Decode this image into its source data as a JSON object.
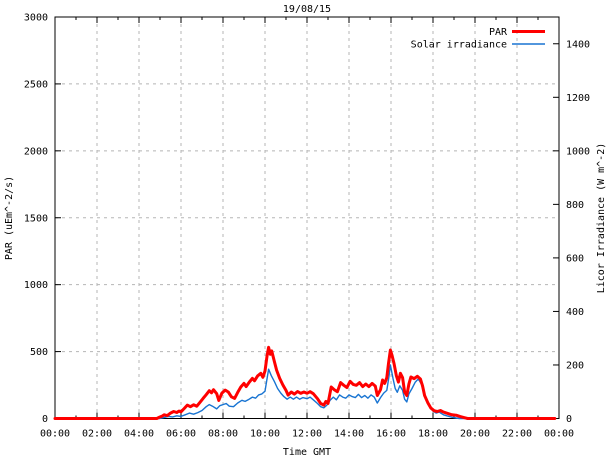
{
  "chart": {
    "title": "19/08/15",
    "x_axis": {
      "label": "Time GMT"
    },
    "y_left": {
      "label": "PAR (uEm^-2/s)"
    },
    "y_right": {
      "label": "Licor Irradiance (W m^-2)"
    },
    "legend": [
      {
        "label": "PAR",
        "color": "#ff0000"
      },
      {
        "label": "Solar irradiance",
        "color": "#1874d2"
      }
    ],
    "grid_color": "#b5b5b5",
    "border_color": "#000000",
    "background_color": "#ffffff"
  },
  "chart_data": {
    "type": "line",
    "title": "19/08/15",
    "xlabel": "Time GMT",
    "ylabel_left": "PAR (uEm^-2/s)",
    "ylabel_right": "Licor Irradiance (W m^-2)",
    "x_unit": "hours",
    "xlim": [
      0,
      24
    ],
    "ylim_left": [
      0,
      3000
    ],
    "ylim_right": [
      0,
      1500
    ],
    "x_tick_hours": [
      0,
      2,
      4,
      6,
      8,
      10,
      12,
      14,
      16,
      18,
      20,
      22,
      24
    ],
    "x_tick_labels": [
      "00:00",
      "02:00",
      "04:00",
      "06:00",
      "08:00",
      "10:00",
      "12:00",
      "14:00",
      "16:00",
      "18:00",
      "20:00",
      "22:00",
      "00:00"
    ],
    "x_minor_tick_hours": [
      1,
      3,
      5,
      7,
      9,
      11,
      13,
      15,
      17,
      19,
      21,
      23
    ],
    "y_left_ticks": [
      0,
      500,
      1000,
      1500,
      2000,
      2500,
      3000
    ],
    "y_right_ticks": [
      0,
      200,
      400,
      600,
      800,
      1000,
      1200,
      1400
    ],
    "grid": true,
    "legend_position": "top-right",
    "series": [
      {
        "name": "Solar irradiance",
        "axis": "right",
        "color": "#1874d2",
        "width": 1.4,
        "points": [
          [
            0,
            0
          ],
          [
            5.0,
            0
          ],
          [
            5.2,
            4
          ],
          [
            5.4,
            8
          ],
          [
            5.6,
            6
          ],
          [
            5.8,
            10
          ],
          [
            6.0,
            8
          ],
          [
            6.2,
            14
          ],
          [
            6.4,
            20
          ],
          [
            6.6,
            16
          ],
          [
            6.8,
            22
          ],
          [
            7.0,
            30
          ],
          [
            7.2,
            44
          ],
          [
            7.35,
            52
          ],
          [
            7.5,
            46
          ],
          [
            7.7,
            36
          ],
          [
            7.85,
            48
          ],
          [
            8.0,
            52
          ],
          [
            8.15,
            56
          ],
          [
            8.3,
            46
          ],
          [
            8.5,
            44
          ],
          [
            8.7,
            58
          ],
          [
            8.9,
            68
          ],
          [
            9.05,
            64
          ],
          [
            9.2,
            70
          ],
          [
            9.4,
            80
          ],
          [
            9.55,
            76
          ],
          [
            9.7,
            88
          ],
          [
            9.85,
            92
          ],
          [
            10.0,
            102
          ],
          [
            10.1,
            150
          ],
          [
            10.17,
            184
          ],
          [
            10.3,
            160
          ],
          [
            10.45,
            138
          ],
          [
            10.6,
            112
          ],
          [
            10.75,
            95
          ],
          [
            10.9,
            82
          ],
          [
            11.05,
            72
          ],
          [
            11.2,
            80
          ],
          [
            11.35,
            72
          ],
          [
            11.5,
            80
          ],
          [
            11.65,
            72
          ],
          [
            11.8,
            78
          ],
          [
            12.0,
            74
          ],
          [
            12.15,
            80
          ],
          [
            12.3,
            70
          ],
          [
            12.5,
            56
          ],
          [
            12.65,
            44
          ],
          [
            12.8,
            40
          ],
          [
            12.95,
            50
          ],
          [
            13.1,
            68
          ],
          [
            13.25,
            80
          ],
          [
            13.4,
            70
          ],
          [
            13.55,
            88
          ],
          [
            13.7,
            80
          ],
          [
            13.85,
            76
          ],
          [
            14.0,
            88
          ],
          [
            14.15,
            82
          ],
          [
            14.3,
            78
          ],
          [
            14.45,
            90
          ],
          [
            14.6,
            78
          ],
          [
            14.75,
            86
          ],
          [
            14.9,
            76
          ],
          [
            15.05,
            88
          ],
          [
            15.2,
            80
          ],
          [
            15.35,
            58
          ],
          [
            15.5,
            78
          ],
          [
            15.65,
            95
          ],
          [
            15.8,
            105
          ],
          [
            15.9,
            155
          ],
          [
            15.97,
            200
          ],
          [
            16.1,
            148
          ],
          [
            16.2,
            112
          ],
          [
            16.3,
            98
          ],
          [
            16.42,
            122
          ],
          [
            16.55,
            105
          ],
          [
            16.65,
            72
          ],
          [
            16.75,
            62
          ],
          [
            16.85,
            92
          ],
          [
            17.0,
            112
          ],
          [
            17.15,
            135
          ],
          [
            17.3,
            148
          ],
          [
            17.45,
            128
          ],
          [
            17.55,
            100
          ],
          [
            17.7,
            70
          ],
          [
            17.85,
            45
          ],
          [
            18.0,
            28
          ],
          [
            18.15,
            20
          ],
          [
            18.3,
            24
          ],
          [
            18.5,
            14
          ],
          [
            18.7,
            9
          ],
          [
            18.9,
            5
          ],
          [
            19.1,
            2
          ],
          [
            19.25,
            0
          ],
          [
            23.8,
            0
          ]
        ]
      },
      {
        "name": "PAR",
        "axis": "left",
        "color": "#ff0000",
        "width": 3,
        "points": [
          [
            0,
            0
          ],
          [
            4.85,
            0
          ],
          [
            4.95,
            8
          ],
          [
            5.1,
            18
          ],
          [
            5.2,
            28
          ],
          [
            5.35,
            22
          ],
          [
            5.5,
            40
          ],
          [
            5.65,
            52
          ],
          [
            5.8,
            45
          ],
          [
            5.9,
            55
          ],
          [
            6.0,
            50
          ],
          [
            6.15,
            75
          ],
          [
            6.3,
            100
          ],
          [
            6.45,
            88
          ],
          [
            6.6,
            102
          ],
          [
            6.75,
            92
          ],
          [
            6.9,
            120
          ],
          [
            7.05,
            150
          ],
          [
            7.2,
            178
          ],
          [
            7.35,
            208
          ],
          [
            7.45,
            192
          ],
          [
            7.55,
            215
          ],
          [
            7.7,
            185
          ],
          [
            7.8,
            135
          ],
          [
            7.95,
            190
          ],
          [
            8.1,
            212
          ],
          [
            8.25,
            198
          ],
          [
            8.4,
            162
          ],
          [
            8.55,
            150
          ],
          [
            8.7,
            195
          ],
          [
            8.85,
            235
          ],
          [
            9.0,
            262
          ],
          [
            9.1,
            238
          ],
          [
            9.25,
            272
          ],
          [
            9.4,
            300
          ],
          [
            9.5,
            282
          ],
          [
            9.65,
            318
          ],
          [
            9.8,
            338
          ],
          [
            9.9,
            308
          ],
          [
            10.0,
            355
          ],
          [
            10.1,
            470
          ],
          [
            10.17,
            532
          ],
          [
            10.25,
            480
          ],
          [
            10.32,
            505
          ],
          [
            10.45,
            425
          ],
          [
            10.55,
            362
          ],
          [
            10.7,
            300
          ],
          [
            10.85,
            250
          ],
          [
            11.0,
            210
          ],
          [
            11.1,
            175
          ],
          [
            11.25,
            198
          ],
          [
            11.4,
            182
          ],
          [
            11.55,
            202
          ],
          [
            11.7,
            188
          ],
          [
            11.85,
            198
          ],
          [
            12.0,
            188
          ],
          [
            12.15,
            200
          ],
          [
            12.3,
            185
          ],
          [
            12.5,
            148
          ],
          [
            12.65,
            112
          ],
          [
            12.8,
            100
          ],
          [
            12.9,
            128
          ],
          [
            13.0,
            112
          ],
          [
            13.15,
            235
          ],
          [
            13.3,
            215
          ],
          [
            13.45,
            200
          ],
          [
            13.6,
            268
          ],
          [
            13.75,
            248
          ],
          [
            13.9,
            232
          ],
          [
            14.05,
            278
          ],
          [
            14.2,
            255
          ],
          [
            14.35,
            248
          ],
          [
            14.5,
            268
          ],
          [
            14.65,
            238
          ],
          [
            14.8,
            258
          ],
          [
            14.95,
            238
          ],
          [
            15.1,
            262
          ],
          [
            15.25,
            242
          ],
          [
            15.35,
            172
          ],
          [
            15.5,
            215
          ],
          [
            15.6,
            288
          ],
          [
            15.7,
            262
          ],
          [
            15.8,
            305
          ],
          [
            15.88,
            412
          ],
          [
            15.97,
            512
          ],
          [
            16.05,
            470
          ],
          [
            16.15,
            408
          ],
          [
            16.25,
            322
          ],
          [
            16.35,
            272
          ],
          [
            16.45,
            338
          ],
          [
            16.55,
            305
          ],
          [
            16.65,
            198
          ],
          [
            16.75,
            172
          ],
          [
            16.85,
            258
          ],
          [
            16.95,
            310
          ],
          [
            17.1,
            298
          ],
          [
            17.25,
            315
          ],
          [
            17.4,
            295
          ],
          [
            17.5,
            245
          ],
          [
            17.6,
            172
          ],
          [
            17.75,
            118
          ],
          [
            17.9,
            78
          ],
          [
            18.05,
            58
          ],
          [
            18.2,
            52
          ],
          [
            18.35,
            60
          ],
          [
            18.5,
            48
          ],
          [
            18.7,
            38
          ],
          [
            18.9,
            28
          ],
          [
            19.1,
            25
          ],
          [
            19.3,
            14
          ],
          [
            19.5,
            6
          ],
          [
            19.65,
            0
          ],
          [
            23.8,
            0
          ]
        ]
      }
    ]
  }
}
